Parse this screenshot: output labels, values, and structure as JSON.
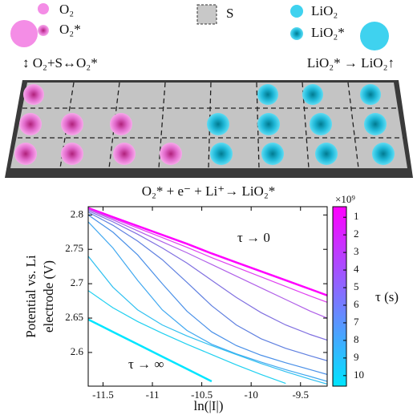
{
  "diagram": {
    "legend": {
      "o2": "O₂",
      "o2_star": "O₂*",
      "s": "S",
      "lio2": "LiO₂",
      "lio2_star": "LiO₂*"
    },
    "left_reaction": "↕ O₂+S↔O₂*",
    "right_reaction": "LiO₂* → LiO₂↑",
    "bottom_reaction": "O₂* + e⁻ + Li⁺→ LiO₂*"
  },
  "chart_data": {
    "type": "line",
    "x_label": "ln(|I|)",
    "y_label": [
      "Potential vs. Li",
      "electrode (V)"
    ],
    "x": [
      -11.65,
      -11.4,
      -11.15,
      -10.9,
      -10.65,
      -10.4,
      -10.15,
      -9.9,
      -9.65,
      -9.4,
      -9.23
    ],
    "xlim": [
      -11.65,
      -9.23
    ],
    "ylim": [
      2.551,
      2.812
    ],
    "xticks": [
      -11.5,
      -11,
      -10.5,
      -10,
      -9.5
    ],
    "yticks": [
      2.6,
      2.65,
      2.7,
      2.75,
      2.8
    ],
    "series": [
      {
        "color": "#ff00ff",
        "values": [
          2.81,
          2.797,
          2.784,
          2.771,
          2.758,
          2.744,
          2.731,
          2.718,
          2.705,
          2.692,
          2.683
        ]
      },
      {
        "color": "#e040f0",
        "values": [
          2.809,
          2.795,
          2.781,
          2.767,
          2.753,
          2.738,
          2.724,
          2.71,
          2.696,
          2.682,
          2.673
        ]
      },
      {
        "color": "#b060e8",
        "values": [
          2.808,
          2.793,
          2.777,
          2.761,
          2.745,
          2.728,
          2.711,
          2.694,
          2.677,
          2.66,
          2.65
        ]
      },
      {
        "color": "#8070e0",
        "values": [
          2.806,
          2.79,
          2.772,
          2.752,
          2.73,
          2.705,
          2.68,
          2.658,
          2.64,
          2.626,
          2.618
        ]
      },
      {
        "color": "#6080e0",
        "values": [
          2.804,
          2.785,
          2.762,
          2.735,
          2.702,
          2.668,
          2.64,
          2.62,
          2.606,
          2.595,
          2.588
        ]
      },
      {
        "color": "#4a90e8",
        "values": [
          2.8,
          2.775,
          2.742,
          2.7,
          2.66,
          2.63,
          2.61,
          2.596,
          2.585,
          2.575,
          2.568
        ]
      },
      {
        "color": "#40a8f0",
        "values": [
          2.79,
          2.752,
          2.705,
          2.662,
          2.632,
          2.612,
          2.598,
          2.586,
          2.575,
          2.565,
          2.558
        ]
      },
      {
        "color": "#30c0f0",
        "values": [
          2.74,
          2.695,
          2.662,
          2.64,
          2.624,
          2.61,
          2.597,
          2.584,
          2.572,
          2.561,
          2.554
        ]
      },
      {
        "color": "#20d0f0",
        "values": [
          2.69,
          2.665,
          2.645,
          2.628,
          2.612,
          2.597,
          2.582,
          2.568,
          2.555,
          null,
          null
        ]
      },
      {
        "color": "#00e5ff",
        "values": [
          2.648,
          2.63,
          2.612,
          2.594,
          2.576,
          2.558,
          null,
          null,
          null,
          null,
          null
        ]
      }
    ],
    "annotations": [
      "τ → 0",
      "τ → ∞"
    ],
    "colorbar": {
      "label": "τ (s)",
      "exponent": "×10⁹",
      "colors": [
        "#ff00ff",
        "#00e5ff"
      ],
      "lim": [
        0.4,
        10.6
      ],
      "ticks": [
        1,
        2,
        3,
        4,
        5,
        6,
        7,
        8,
        9,
        10
      ]
    }
  }
}
